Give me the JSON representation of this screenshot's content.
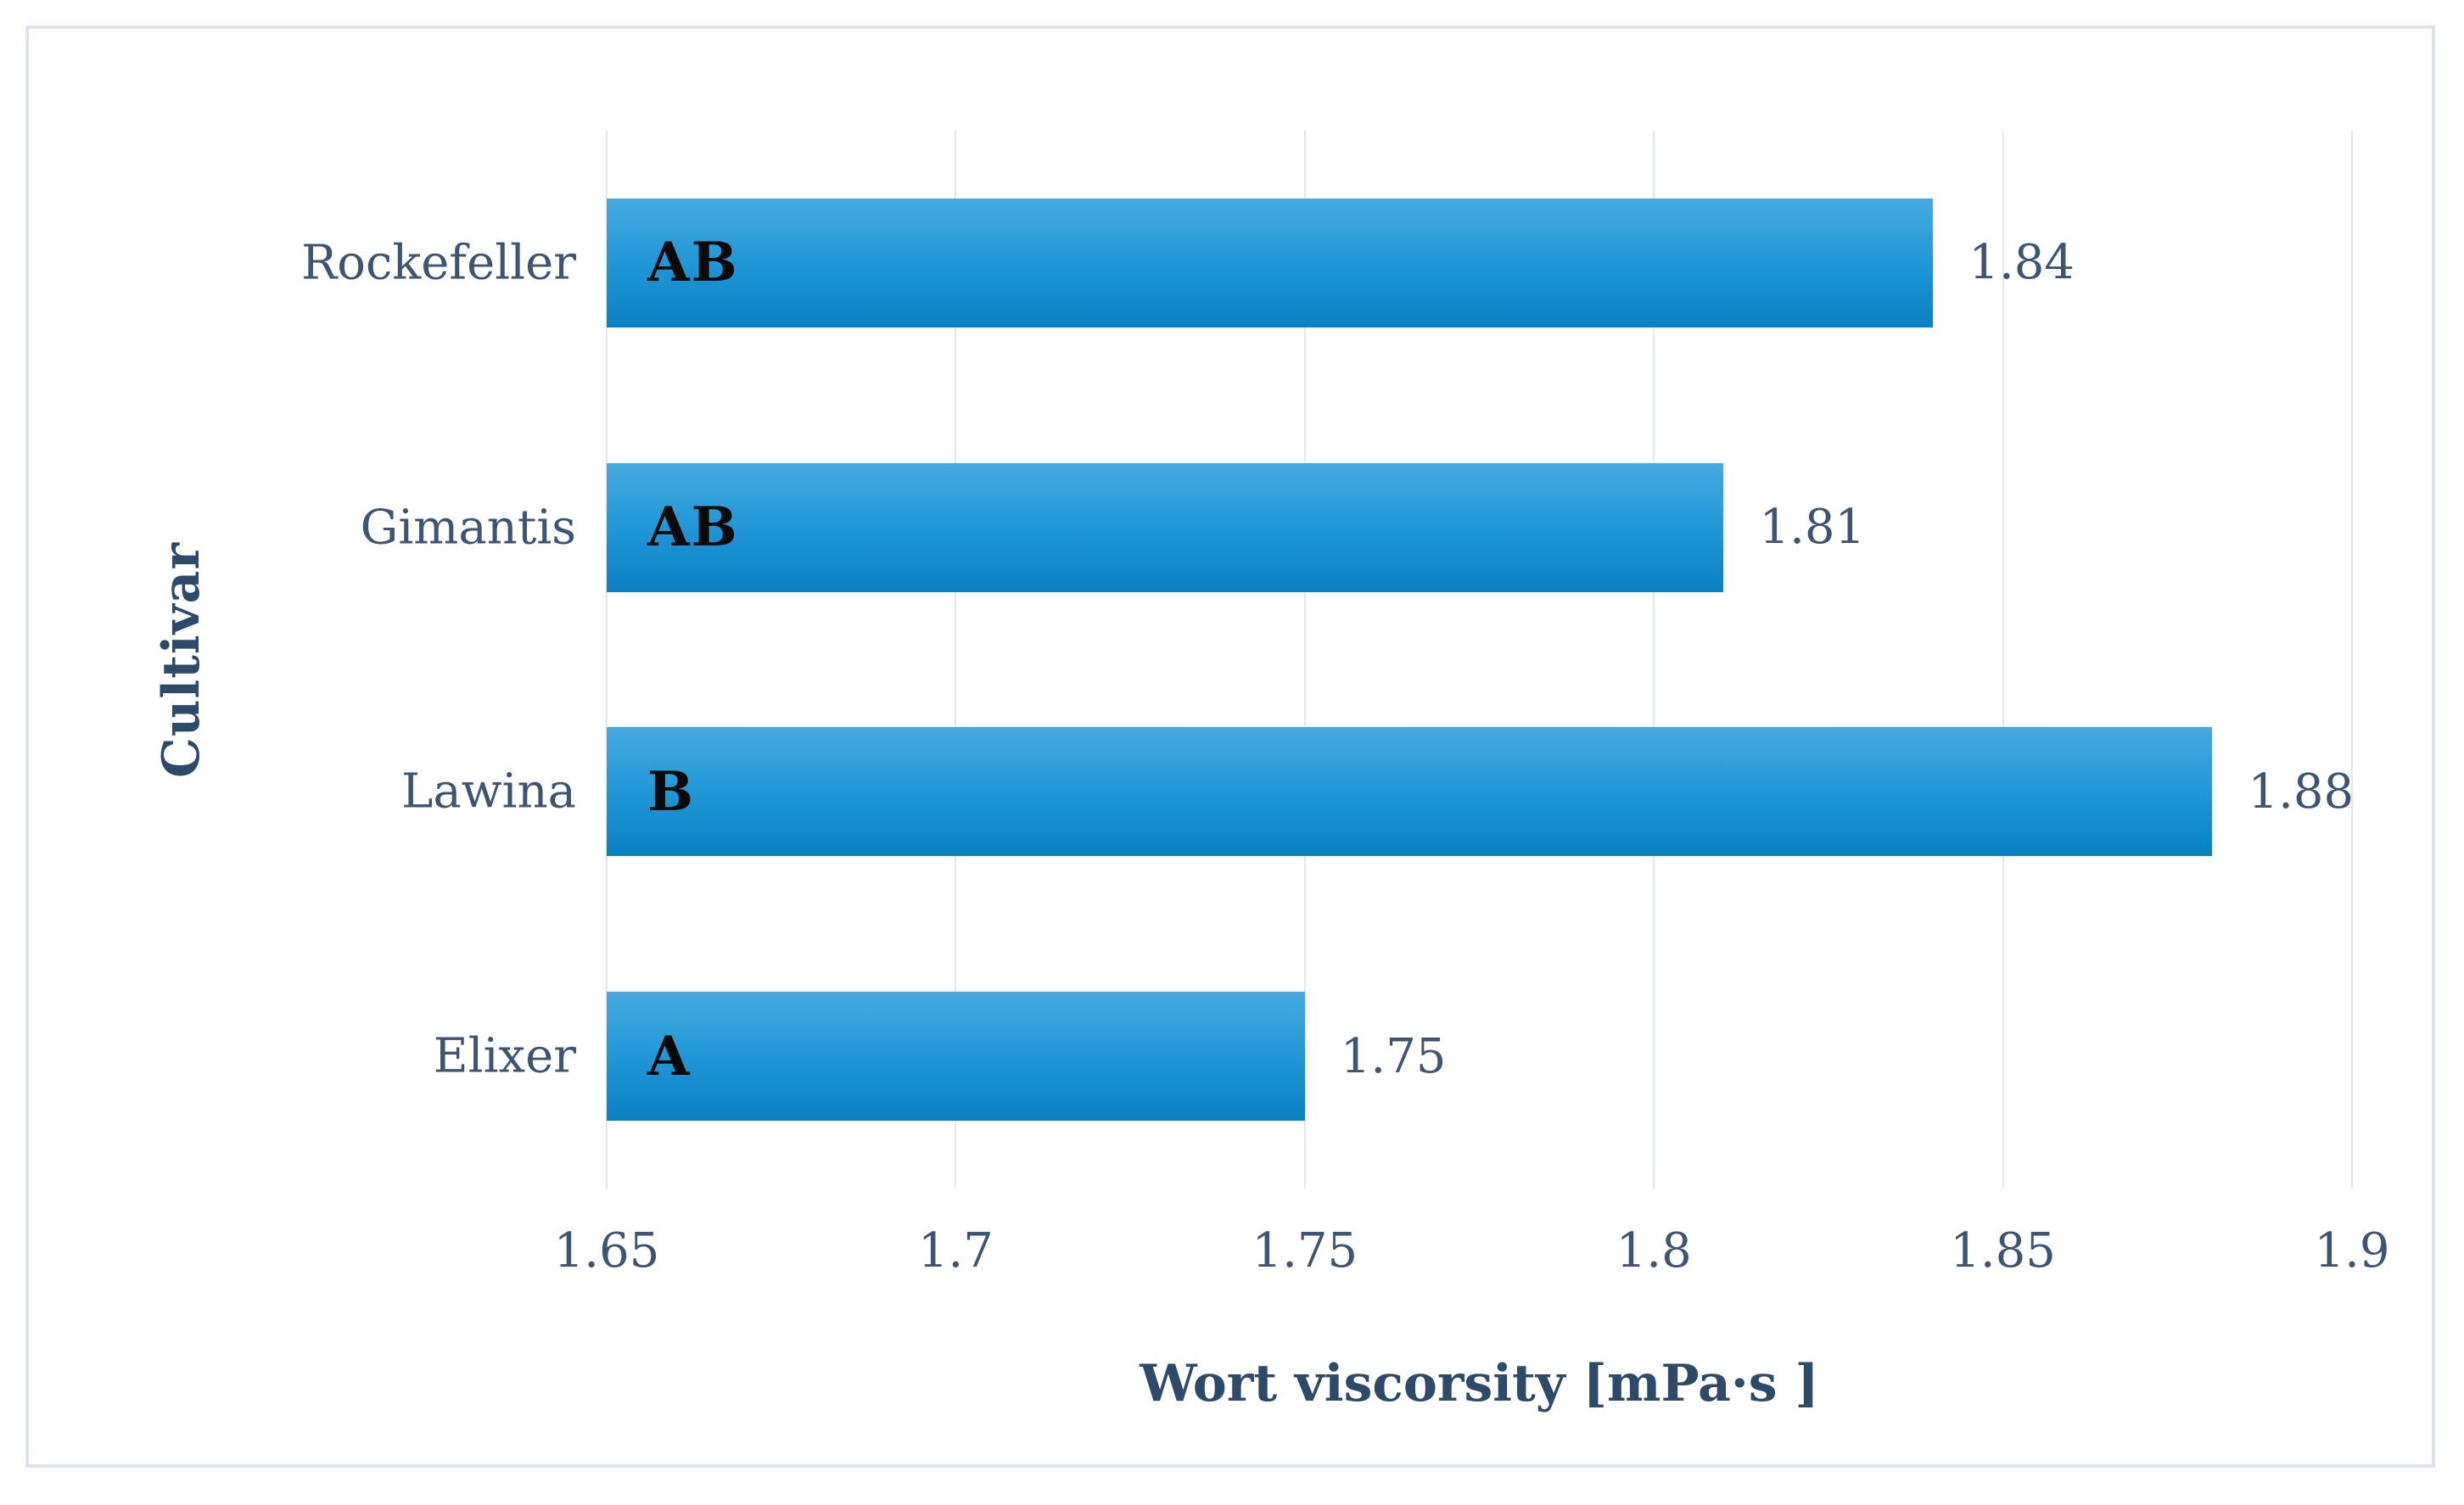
{
  "figure": {
    "background": "#ffffff",
    "border_color": "#dce3ed"
  },
  "chart_data": {
    "type": "bar",
    "orientation": "horizontal",
    "title": "",
    "xlabel": "Wort viscorsity [mPa·s ]",
    "ylabel": "Cultivar",
    "categories": [
      "Rockefeller",
      "Gimantis",
      "Lawina",
      "Elixer"
    ],
    "values": [
      1.84,
      1.81,
      1.88,
      1.75
    ],
    "value_labels": [
      "1.84",
      "1.81",
      "1.88",
      "1.75"
    ],
    "bar_letters": [
      "AB",
      "AB",
      "B",
      "A"
    ],
    "xlim": [
      1.65,
      1.9
    ],
    "x_ticks": [
      1.65,
      1.7,
      1.75,
      1.8,
      1.85,
      1.9
    ],
    "x_tick_labels": [
      "1.65",
      "1.7",
      "1.75",
      "1.8",
      "1.85",
      "1.9"
    ],
    "grid": "vertical",
    "legend": "none",
    "colors": {
      "bar_gradient_top": "#46abe0",
      "bar_gradient_mid": "#1e95d5",
      "bar_gradient_bottom": "#0a80c4",
      "gridline": "#e2e7ee",
      "tick_text": "#3d5573",
      "axis_title_text": "#2e4a6b",
      "bar_letter_text": "#0a0a0a",
      "frame_border": "#dce3ed"
    }
  }
}
